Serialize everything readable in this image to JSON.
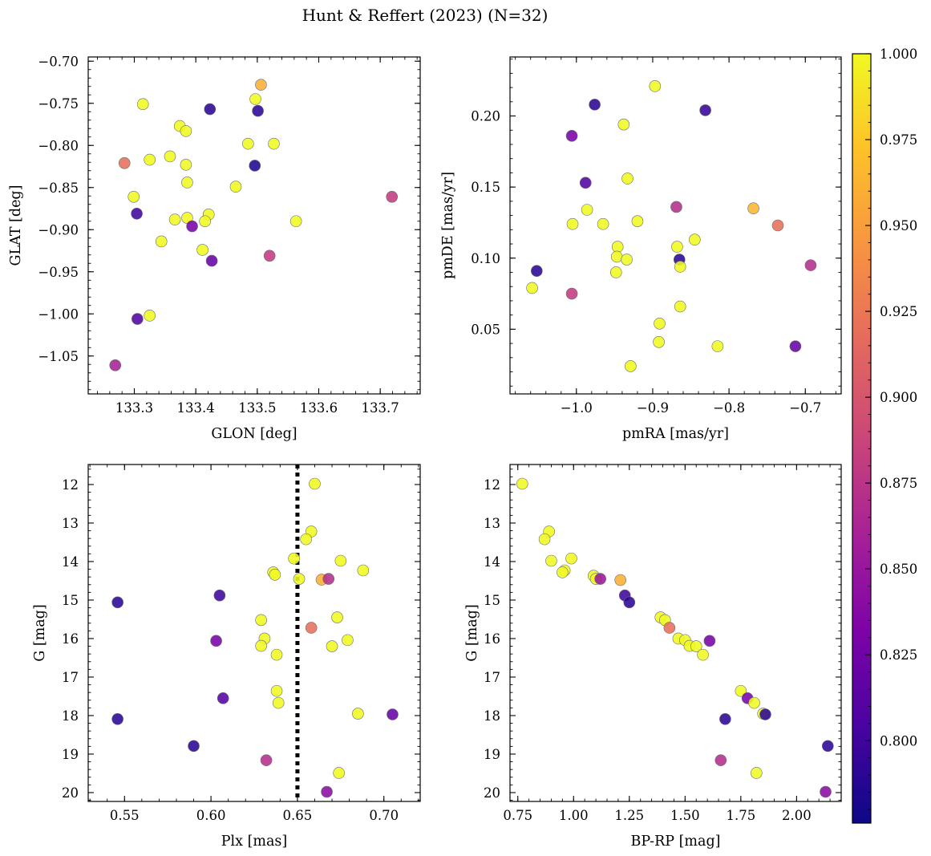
{
  "title": "Hunt & Reffert (2023) (N=32)",
  "colorbar": {
    "min": 0.776,
    "max": 1.0,
    "ticks": [
      "0.800",
      "0.825",
      "0.850",
      "0.875",
      "0.900",
      "0.925",
      "0.950",
      "0.975",
      "1.000"
    ],
    "cmap": "plasma"
  },
  "chart_data": [
    {
      "type": "scatter",
      "name": "sky",
      "xlabel": "GLON [deg]",
      "ylabel": "GLAT [deg]",
      "xlim": [
        133.225,
        133.765
      ],
      "ylim": [
        -1.095,
        -0.695
      ],
      "xticks": [
        "133.3",
        "133.4",
        "133.5",
        "133.6",
        "133.7"
      ],
      "yticks": [
        "-0.70",
        "-0.75",
        "-0.80",
        "-0.85",
        "-0.90",
        "-0.95",
        "-1.00",
        "-1.05"
      ],
      "points": [
        [
          133.506,
          -0.728,
          0.96
        ],
        [
          133.497,
          -0.745,
          1.0
        ],
        [
          133.314,
          -0.751,
          1.0
        ],
        [
          133.423,
          -0.757,
          0.79
        ],
        [
          133.501,
          -0.759,
          0.79
        ],
        [
          133.374,
          -0.777,
          1.0
        ],
        [
          133.384,
          -0.783,
          1.0
        ],
        [
          133.485,
          -0.798,
          1.0
        ],
        [
          133.527,
          -0.798,
          1.0
        ],
        [
          133.358,
          -0.813,
          1.0
        ],
        [
          133.325,
          -0.817,
          1.0
        ],
        [
          133.284,
          -0.821,
          0.92
        ],
        [
          133.384,
          -0.823,
          1.0
        ],
        [
          133.496,
          -0.824,
          0.785
        ],
        [
          133.386,
          -0.844,
          1.0
        ],
        [
          133.465,
          -0.849,
          1.0
        ],
        [
          133.719,
          -0.861,
          0.88
        ],
        [
          133.299,
          -0.861,
          1.0
        ],
        [
          133.304,
          -0.881,
          0.8
        ],
        [
          133.421,
          -0.882,
          1.0
        ],
        [
          133.366,
          -0.888,
          1.0
        ],
        [
          133.386,
          -0.886,
          1.0
        ],
        [
          133.563,
          -0.89,
          1.0
        ],
        [
          133.415,
          -0.89,
          1.0
        ],
        [
          133.394,
          -0.896,
          0.83
        ],
        [
          133.344,
          -0.914,
          1.0
        ],
        [
          133.411,
          -0.924,
          1.0
        ],
        [
          133.52,
          -0.931,
          0.88
        ],
        [
          133.426,
          -0.937,
          0.82
        ],
        [
          133.325,
          -1.002,
          1.0
        ],
        [
          133.305,
          -1.006,
          0.81
        ],
        [
          133.269,
          -1.061,
          0.86
        ]
      ]
    },
    {
      "type": "scatter",
      "name": "proper-motion",
      "xlabel": "pmRA [mas/yr]",
      "ylabel": "pmDE [mas/yr]",
      "xlim": [
        -1.087,
        -0.653
      ],
      "ylim": [
        0.0045,
        0.2415
      ],
      "xticks": [
        "-1.0",
        "-0.9",
        "-0.8",
        "-0.7"
      ],
      "yticks": [
        "0.05",
        "0.10",
        "0.15",
        "0.20"
      ],
      "points": [
        [
          -0.897,
          0.221,
          1.0
        ],
        [
          -0.976,
          0.208,
          0.79
        ],
        [
          -0.831,
          0.204,
          0.795
        ],
        [
          -0.938,
          0.194,
          1.0
        ],
        [
          -1.006,
          0.186,
          0.83
        ],
        [
          -0.933,
          0.156,
          1.0
        ],
        [
          -0.988,
          0.153,
          0.81
        ],
        [
          -0.768,
          0.135,
          0.965
        ],
        [
          -0.869,
          0.136,
          0.87
        ],
        [
          -0.986,
          0.134,
          1.0
        ],
        [
          -0.92,
          0.126,
          1.0
        ],
        [
          -0.965,
          0.124,
          1.0
        ],
        [
          -1.005,
          0.124,
          1.0
        ],
        [
          -0.736,
          0.123,
          0.92
        ],
        [
          -0.845,
          0.113,
          1.0
        ],
        [
          -0.946,
          0.108,
          1.0
        ],
        [
          -0.868,
          0.108,
          1.0
        ],
        [
          -0.947,
          0.101,
          1.0
        ],
        [
          -0.934,
          0.099,
          1.0
        ],
        [
          -0.865,
          0.099,
          0.79
        ],
        [
          -0.693,
          0.095,
          0.87
        ],
        [
          -0.864,
          0.094,
          1.0
        ],
        [
          -1.052,
          0.091,
          0.79
        ],
        [
          -0.948,
          0.09,
          1.0
        ],
        [
          -1.058,
          0.079,
          1.0
        ],
        [
          -1.006,
          0.075,
          0.88
        ],
        [
          -0.864,
          0.066,
          1.0
        ],
        [
          -0.891,
          0.054,
          1.0
        ],
        [
          -0.892,
          0.041,
          1.0
        ],
        [
          -0.815,
          0.038,
          1.0
        ],
        [
          -0.713,
          0.038,
          0.82
        ],
        [
          -0.929,
          0.024,
          1.0
        ]
      ]
    },
    {
      "type": "scatter",
      "name": "parallax",
      "xlabel": "Plx [mas]",
      "ylabel": "G [mag]",
      "xlim": [
        0.529,
        0.721
      ],
      "ylim": [
        20.23,
        11.48
      ],
      "xticks": [
        "0.55",
        "0.60",
        "0.65",
        "0.70"
      ],
      "yticks": [
        "12",
        "13",
        "14",
        "15",
        "16",
        "17",
        "18",
        "19",
        "20"
      ],
      "vline": 0.65,
      "points": [
        [
          0.66,
          11.98,
          1.0
        ],
        [
          0.658,
          13.22,
          1.0
        ],
        [
          0.655,
          13.42,
          1.0
        ],
        [
          0.648,
          13.92,
          1.0
        ],
        [
          0.675,
          13.98,
          1.0
        ],
        [
          0.688,
          14.23,
          1.0
        ],
        [
          0.636,
          14.28,
          1.0
        ],
        [
          0.637,
          14.34,
          1.0
        ],
        [
          0.651,
          14.45,
          1.0
        ],
        [
          0.664,
          14.47,
          0.96
        ],
        [
          0.668,
          14.45,
          0.87
        ],
        [
          0.546,
          15.06,
          0.79
        ],
        [
          0.605,
          14.88,
          0.8
        ],
        [
          0.629,
          15.52,
          1.0
        ],
        [
          0.673,
          15.45,
          1.0
        ],
        [
          0.658,
          15.72,
          0.92
        ],
        [
          0.631,
          16.0,
          1.0
        ],
        [
          0.679,
          16.04,
          1.0
        ],
        [
          0.603,
          16.06,
          0.83
        ],
        [
          0.629,
          16.19,
          1.0
        ],
        [
          0.67,
          16.2,
          1.0
        ],
        [
          0.638,
          16.42,
          1.0
        ],
        [
          0.638,
          17.36,
          1.0
        ],
        [
          0.607,
          17.55,
          0.81
        ],
        [
          0.639,
          17.67,
          1.0
        ],
        [
          0.685,
          17.95,
          1.0
        ],
        [
          0.705,
          17.97,
          0.82
        ],
        [
          0.546,
          18.09,
          0.79
        ],
        [
          0.59,
          18.79,
          0.79
        ],
        [
          0.632,
          19.16,
          0.87
        ],
        [
          0.674,
          19.49,
          1.0
        ],
        [
          0.667,
          19.98,
          0.84
        ]
      ]
    },
    {
      "type": "scatter",
      "name": "color-magnitude",
      "xlabel": "BP-RP [mag]",
      "ylabel": "G [mag]",
      "xlim": [
        0.715,
        2.2
      ],
      "ylim": [
        20.23,
        11.48
      ],
      "xticks": [
        "0.75",
        "1.00",
        "1.25",
        "1.50",
        "1.75",
        "2.00"
      ],
      "yticks": [
        "12",
        "13",
        "14",
        "15",
        "16",
        "17",
        "18",
        "19",
        "20"
      ],
      "points": [
        [
          0.77,
          11.98,
          1.0
        ],
        [
          0.89,
          13.22,
          1.0
        ],
        [
          0.87,
          13.42,
          1.0
        ],
        [
          0.99,
          13.92,
          1.0
        ],
        [
          0.9,
          13.98,
          1.0
        ],
        [
          0.96,
          14.23,
          1.0
        ],
        [
          0.95,
          14.28,
          1.0
        ],
        [
          1.09,
          14.37,
          1.0
        ],
        [
          1.1,
          14.45,
          1.0
        ],
        [
          1.12,
          14.45,
          0.85
        ],
        [
          1.21,
          14.48,
          0.96
        ],
        [
          1.23,
          14.88,
          0.8
        ],
        [
          1.25,
          15.06,
          0.79
        ],
        [
          1.39,
          15.45,
          1.0
        ],
        [
          1.41,
          15.52,
          1.0
        ],
        [
          1.43,
          15.72,
          0.92
        ],
        [
          1.47,
          16.0,
          1.0
        ],
        [
          1.5,
          16.04,
          1.0
        ],
        [
          1.61,
          16.06,
          0.83
        ],
        [
          1.52,
          16.19,
          1.0
        ],
        [
          1.55,
          16.2,
          1.0
        ],
        [
          1.58,
          16.42,
          1.0
        ],
        [
          1.75,
          17.36,
          1.0
        ],
        [
          1.78,
          17.55,
          0.83
        ],
        [
          1.81,
          17.67,
          1.0
        ],
        [
          1.85,
          17.95,
          1.0
        ],
        [
          1.86,
          17.97,
          0.79
        ],
        [
          1.68,
          18.09,
          0.79
        ],
        [
          2.14,
          18.79,
          0.79
        ],
        [
          1.66,
          19.16,
          0.87
        ],
        [
          1.82,
          19.49,
          1.0
        ],
        [
          2.13,
          19.98,
          0.84
        ]
      ]
    }
  ]
}
